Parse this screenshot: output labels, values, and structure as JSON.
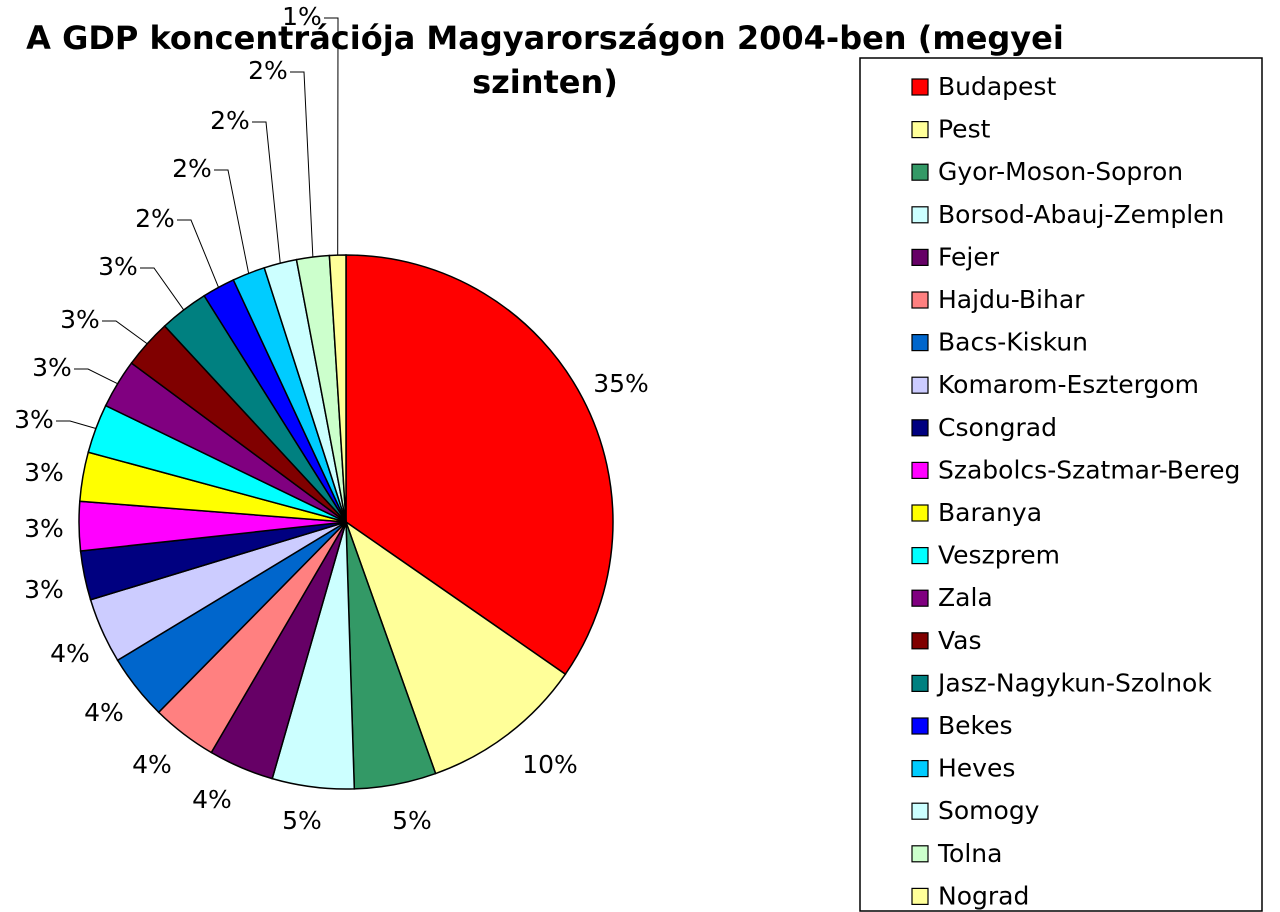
{
  "chart_data": {
    "type": "pie",
    "title": "A GDP koncentrációja Magyarországon 2004-ben (megyei szinten)",
    "categories": [
      "Budapest",
      "Pest",
      "Gyor-Moson-Sopron",
      "Borsod-Abauj-Zemplen",
      "Fejer",
      "Hajdu-Bihar",
      "Bacs-Kiskun",
      "Komarom-Esztergom",
      "Csongrad",
      "Szabolcs-Szatmar-Bereg",
      "Baranya",
      "Veszprem",
      "Zala",
      "Vas",
      "Jasz-Nagykun-Szolnok",
      "Bekes",
      "Heves",
      "Somogy",
      "Tolna",
      "Nograd"
    ],
    "values": [
      35,
      10,
      5,
      5,
      4,
      4,
      4,
      4,
      3,
      3,
      3,
      3,
      3,
      3,
      3,
      2,
      2,
      2,
      2,
      1
    ],
    "value_labels": [
      "35%",
      "10%",
      "5%",
      "5%",
      "4%",
      "4%",
      "4%",
      "4%",
      "3%",
      "3%",
      "3%",
      "3%",
      "3%",
      "3%",
      "3%",
      "2%",
      "2%",
      "2%",
      "2%",
      "1%"
    ],
    "colors": [
      "#ff0000",
      "#ffff99",
      "#339966",
      "#ccffff",
      "#660066",
      "#ff8080",
      "#0066cc",
      "#ccccff",
      "#000080",
      "#ff00ff",
      "#ffff00",
      "#00ffff",
      "#800080",
      "#800000",
      "#008080",
      "#0000ff",
      "#00ccff",
      "#ccffff",
      "#ccffcc",
      "#ffff99"
    ],
    "legend": "right"
  }
}
